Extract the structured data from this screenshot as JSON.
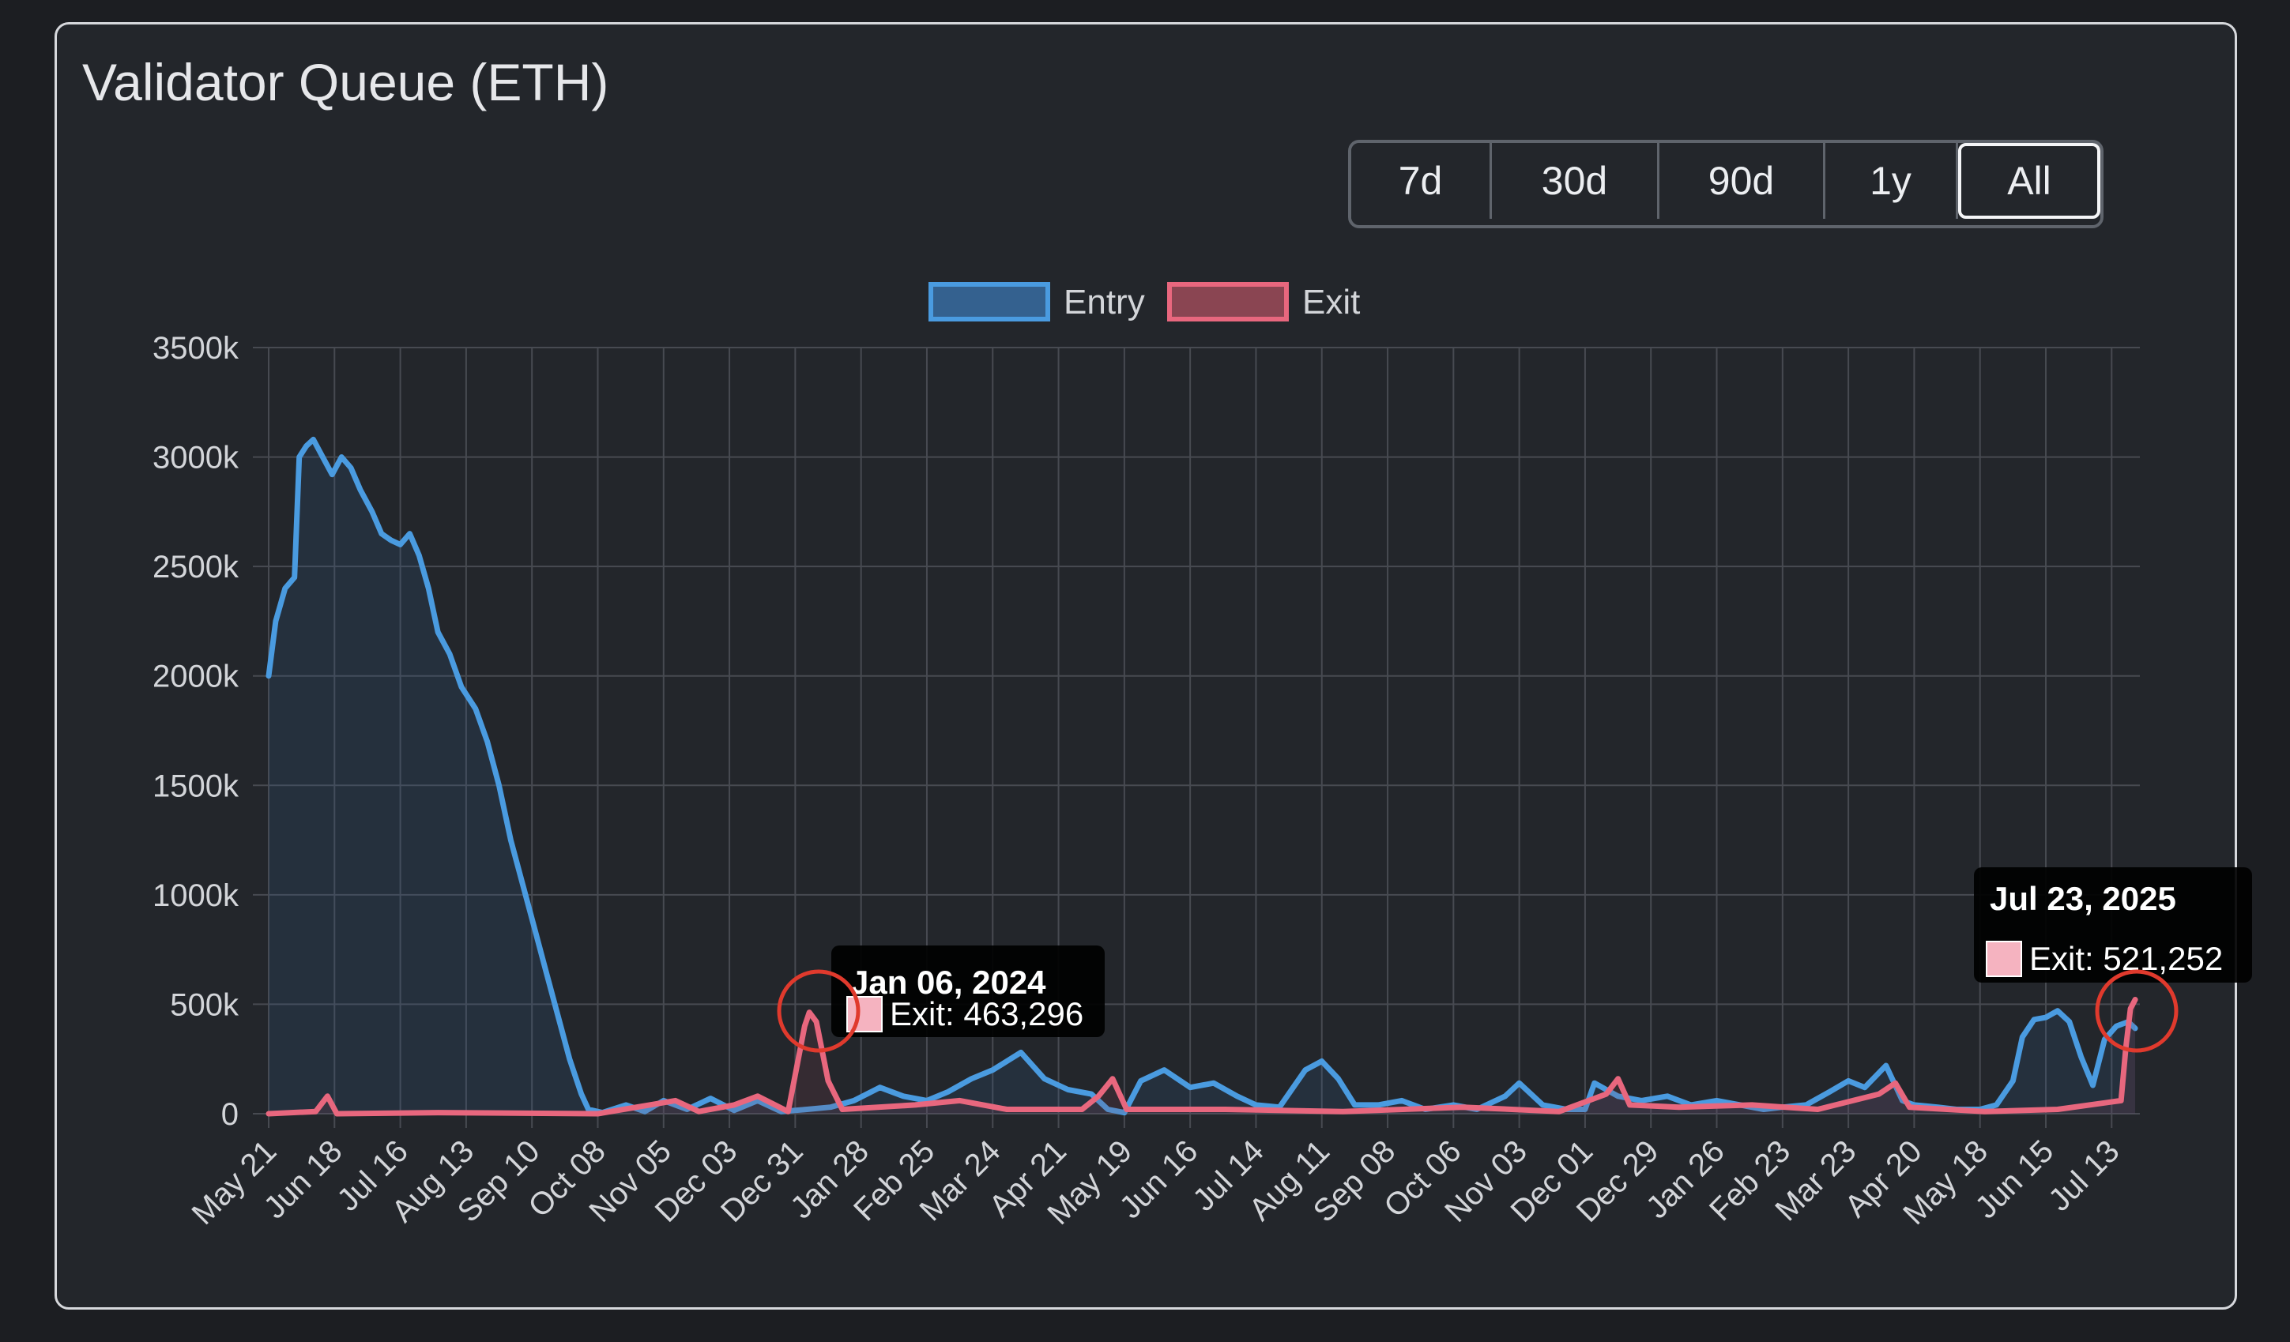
{
  "header": {
    "title": "Validator Queue (ETH)"
  },
  "range_buttons": [
    {
      "label": "7d",
      "active": false
    },
    {
      "label": "30d",
      "active": false
    },
    {
      "label": "90d",
      "active": false
    },
    {
      "label": "1y",
      "active": false
    },
    {
      "label": "All",
      "active": true
    }
  ],
  "colors": {
    "entry_line": "#4a9be0",
    "entry_fill": "#34618f",
    "exit_line": "#e8677e",
    "exit_fill": "#8a4552",
    "grid": "#474a51",
    "highlight_circle": "#e03a2d",
    "tooltip_bg": "#000000"
  },
  "chart_data": {
    "type": "line",
    "title": "",
    "xlabel": "",
    "ylabel": "",
    "ylim": [
      0,
      3500000
    ],
    "y_ticks": [
      "0",
      "500k",
      "1000k",
      "1500k",
      "2000k",
      "2500k",
      "3000k",
      "3500k"
    ],
    "x_tick_labels": [
      "May 21",
      "Jun 18",
      "Jul 16",
      "Aug 13",
      "Sep 10",
      "Oct 08",
      "Nov 05",
      "Dec 03",
      "Dec 31",
      "Jan 28",
      "Feb 25",
      "Mar 24",
      "Apr 21",
      "May 19",
      "Jun 16",
      "Jul 14",
      "Aug 11",
      "Sep 08",
      "Oct 06",
      "Nov 03",
      "Dec 01",
      "Dec 29",
      "Jan 26",
      "Feb 23",
      "Mar 23",
      "Apr 20",
      "May 18",
      "Jun 15",
      "Jul 13"
    ],
    "x_tick_dates": [
      "2023-05-21",
      "2023-06-18",
      "2023-07-16",
      "2023-08-13",
      "2023-09-10",
      "2023-10-08",
      "2023-11-05",
      "2023-12-03",
      "2023-12-31",
      "2024-01-28",
      "2024-02-25",
      "2024-03-24",
      "2024-04-21",
      "2024-05-19",
      "2024-06-16",
      "2024-07-14",
      "2024-08-11",
      "2024-09-08",
      "2024-10-06",
      "2024-11-03",
      "2024-12-01",
      "2024-12-29",
      "2025-01-26",
      "2025-02-23",
      "2025-03-23",
      "2025-04-20",
      "2025-05-18",
      "2025-06-15",
      "2025-07-13"
    ],
    "grid": true,
    "legend_position": "top-center",
    "series": [
      {
        "name": "Entry",
        "points": [
          [
            "2023-05-21",
            2000000
          ],
          [
            "2023-05-24",
            2250000
          ],
          [
            "2023-05-28",
            2400000
          ],
          [
            "2023-06-01",
            2450000
          ],
          [
            "2023-06-03",
            3000000
          ],
          [
            "2023-06-06",
            3050000
          ],
          [
            "2023-06-09",
            3080000
          ],
          [
            "2023-06-13",
            3000000
          ],
          [
            "2023-06-17",
            2920000
          ],
          [
            "2023-06-21",
            3000000
          ],
          [
            "2023-06-25",
            2950000
          ],
          [
            "2023-06-29",
            2850000
          ],
          [
            "2023-07-04",
            2750000
          ],
          [
            "2023-07-08",
            2650000
          ],
          [
            "2023-07-12",
            2620000
          ],
          [
            "2023-07-16",
            2600000
          ],
          [
            "2023-07-20",
            2650000
          ],
          [
            "2023-07-24",
            2550000
          ],
          [
            "2023-07-28",
            2400000
          ],
          [
            "2023-08-01",
            2200000
          ],
          [
            "2023-08-06",
            2100000
          ],
          [
            "2023-08-11",
            1950000
          ],
          [
            "2023-08-17",
            1850000
          ],
          [
            "2023-08-22",
            1700000
          ],
          [
            "2023-08-27",
            1500000
          ],
          [
            "2023-09-01",
            1250000
          ],
          [
            "2023-09-06",
            1050000
          ],
          [
            "2023-09-11",
            850000
          ],
          [
            "2023-09-16",
            650000
          ],
          [
            "2023-09-21",
            450000
          ],
          [
            "2023-09-26",
            250000
          ],
          [
            "2023-10-01",
            90000
          ],
          [
            "2023-10-04",
            20000
          ],
          [
            "2023-10-10",
            5000
          ],
          [
            "2023-10-20",
            40000
          ],
          [
            "2023-10-28",
            10000
          ],
          [
            "2023-11-05",
            60000
          ],
          [
            "2023-11-15",
            20000
          ],
          [
            "2023-11-25",
            70000
          ],
          [
            "2023-12-05",
            15000
          ],
          [
            "2023-12-15",
            60000
          ],
          [
            "2023-12-25",
            10000
          ],
          [
            "2024-01-05",
            20000
          ],
          [
            "2024-01-15",
            30000
          ],
          [
            "2024-01-25",
            60000
          ],
          [
            "2024-02-05",
            120000
          ],
          [
            "2024-02-15",
            80000
          ],
          [
            "2024-02-25",
            60000
          ],
          [
            "2024-03-05",
            100000
          ],
          [
            "2024-03-15",
            160000
          ],
          [
            "2024-03-24",
            200000
          ],
          [
            "2024-04-05",
            280000
          ],
          [
            "2024-04-15",
            160000
          ],
          [
            "2024-04-25",
            110000
          ],
          [
            "2024-05-05",
            90000
          ],
          [
            "2024-05-12",
            20000
          ],
          [
            "2024-05-19",
            5000
          ],
          [
            "2024-05-26",
            150000
          ],
          [
            "2024-06-05",
            200000
          ],
          [
            "2024-06-16",
            120000
          ],
          [
            "2024-06-26",
            140000
          ],
          [
            "2024-07-06",
            80000
          ],
          [
            "2024-07-14",
            40000
          ],
          [
            "2024-07-24",
            30000
          ],
          [
            "2024-08-04",
            200000
          ],
          [
            "2024-08-11",
            240000
          ],
          [
            "2024-08-18",
            160000
          ],
          [
            "2024-08-25",
            40000
          ],
          [
            "2024-09-04",
            40000
          ],
          [
            "2024-09-14",
            60000
          ],
          [
            "2024-09-24",
            20000
          ],
          [
            "2024-10-06",
            40000
          ],
          [
            "2024-10-16",
            20000
          ],
          [
            "2024-10-28",
            80000
          ],
          [
            "2024-11-03",
            140000
          ],
          [
            "2024-11-13",
            40000
          ],
          [
            "2024-11-23",
            20000
          ],
          [
            "2024-12-01",
            20000
          ],
          [
            "2024-12-05",
            140000
          ],
          [
            "2024-12-15",
            80000
          ],
          [
            "2024-12-25",
            60000
          ],
          [
            "2025-01-05",
            80000
          ],
          [
            "2025-01-15",
            40000
          ],
          [
            "2025-01-26",
            60000
          ],
          [
            "2025-02-05",
            40000
          ],
          [
            "2025-02-15",
            20000
          ],
          [
            "2025-02-23",
            30000
          ],
          [
            "2025-03-05",
            40000
          ],
          [
            "2025-03-15",
            100000
          ],
          [
            "2025-03-23",
            150000
          ],
          [
            "2025-03-30",
            120000
          ],
          [
            "2025-04-08",
            220000
          ],
          [
            "2025-04-15",
            60000
          ],
          [
            "2025-04-20",
            40000
          ],
          [
            "2025-04-30",
            30000
          ],
          [
            "2025-05-08",
            20000
          ],
          [
            "2025-05-18",
            20000
          ],
          [
            "2025-05-25",
            40000
          ],
          [
            "2025-06-01",
            150000
          ],
          [
            "2025-06-05",
            350000
          ],
          [
            "2025-06-10",
            430000
          ],
          [
            "2025-06-15",
            440000
          ],
          [
            "2025-06-20",
            470000
          ],
          [
            "2025-06-25",
            420000
          ],
          [
            "2025-06-30",
            260000
          ],
          [
            "2025-07-05",
            130000
          ],
          [
            "2025-07-10",
            340000
          ],
          [
            "2025-07-15",
            400000
          ],
          [
            "2025-07-20",
            420000
          ],
          [
            "2025-07-23",
            390000
          ]
        ]
      },
      {
        "name": "Exit",
        "points": [
          [
            "2023-05-21",
            0
          ],
          [
            "2023-06-10",
            10000
          ],
          [
            "2023-06-15",
            80000
          ],
          [
            "2023-06-19",
            0
          ],
          [
            "2023-08-01",
            5000
          ],
          [
            "2023-10-08",
            0
          ],
          [
            "2023-11-10",
            60000
          ],
          [
            "2023-11-20",
            10000
          ],
          [
            "2023-12-05",
            40000
          ],
          [
            "2023-12-15",
            80000
          ],
          [
            "2023-12-28",
            10000
          ],
          [
            "2024-01-04",
            400000
          ],
          [
            "2024-01-06",
            463296
          ],
          [
            "2024-01-09",
            420000
          ],
          [
            "2024-01-14",
            150000
          ],
          [
            "2024-01-20",
            20000
          ],
          [
            "2024-02-20",
            40000
          ],
          [
            "2024-03-10",
            60000
          ],
          [
            "2024-03-30",
            20000
          ],
          [
            "2024-05-01",
            20000
          ],
          [
            "2024-05-08",
            80000
          ],
          [
            "2024-05-14",
            160000
          ],
          [
            "2024-05-20",
            20000
          ],
          [
            "2024-07-01",
            20000
          ],
          [
            "2024-08-20",
            10000
          ],
          [
            "2024-10-10",
            30000
          ],
          [
            "2024-11-20",
            10000
          ],
          [
            "2024-12-10",
            90000
          ],
          [
            "2024-12-15",
            160000
          ],
          [
            "2024-12-20",
            40000
          ],
          [
            "2025-01-10",
            30000
          ],
          [
            "2025-02-10",
            40000
          ],
          [
            "2025-03-10",
            20000
          ],
          [
            "2025-04-05",
            90000
          ],
          [
            "2025-04-12",
            140000
          ],
          [
            "2025-04-18",
            30000
          ],
          [
            "2025-05-20",
            10000
          ],
          [
            "2025-06-20",
            20000
          ],
          [
            "2025-07-17",
            60000
          ],
          [
            "2025-07-19",
            300000
          ],
          [
            "2025-07-21",
            480000
          ],
          [
            "2025-07-23",
            521252
          ]
        ]
      }
    ],
    "tooltips": [
      {
        "title": "Jan 06, 2024",
        "label": "Exit: 463,296",
        "date": "2024-01-06",
        "value": 463296
      },
      {
        "title": "Jul 23, 2025",
        "label": "Exit: 521,252",
        "date": "2025-07-23",
        "value": 521252
      }
    ]
  }
}
